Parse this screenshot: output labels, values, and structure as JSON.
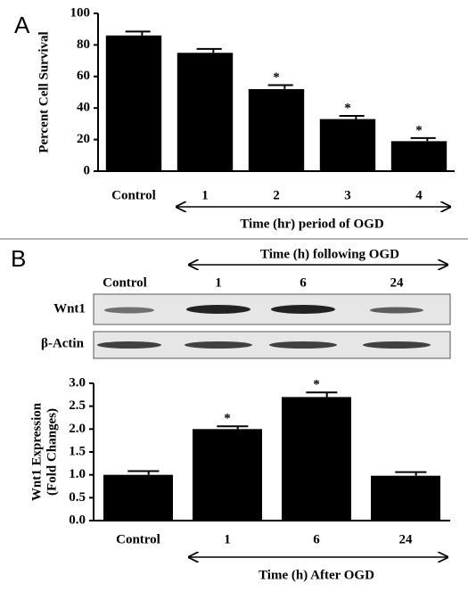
{
  "panel_labels": [
    "A",
    "B"
  ],
  "chart_data": [
    {
      "type": "bar",
      "y_label": "Percent Cell Survival",
      "x_label": "Time (hr) period of OGD",
      "categories": [
        "Control",
        "1",
        "2",
        "3",
        "4"
      ],
      "series": [
        {
          "color": "#000000",
          "values": [
            86,
            75,
            52,
            33,
            19
          ],
          "errors": [
            2.5,
            2.5,
            2.5,
            2,
            2
          ],
          "significance": [
            null,
            null,
            "*",
            "*",
            "*"
          ]
        }
      ],
      "ylim": [
        0,
        100
      ],
      "yticks": [
        0,
        20,
        40,
        60,
        80,
        100
      ]
    },
    {
      "type": "bar",
      "y_label": [
        "Wnt1 Expression",
        "(Fold Changes)"
      ],
      "x_label": "Time (h) After OGD",
      "categories": [
        "Control",
        "1",
        "6",
        "24"
      ],
      "series": [
        {
          "color": "#000000",
          "values": [
            1.0,
            2.0,
            2.7,
            0.98
          ],
          "errors": [
            0.08,
            0.06,
            0.1,
            0.08
          ],
          "significance": [
            null,
            "*",
            "*",
            null
          ]
        }
      ],
      "ylim": [
        0,
        3.0
      ],
      "yticks": [
        {
          "value": 0,
          "label": "0.0"
        },
        0.5,
        {
          "value": 1,
          "label": "1.0"
        },
        1.5,
        {
          "value": 2,
          "label": "2.0"
        },
        2.5,
        {
          "value": 3,
          "label": "3.0"
        }
      ]
    }
  ],
  "blot": {
    "title": "Time (h) following OGD",
    "lanes": [
      "Control",
      "1",
      "6",
      "24"
    ],
    "rows": [
      "Wnt1",
      "β-Actin"
    ]
  }
}
